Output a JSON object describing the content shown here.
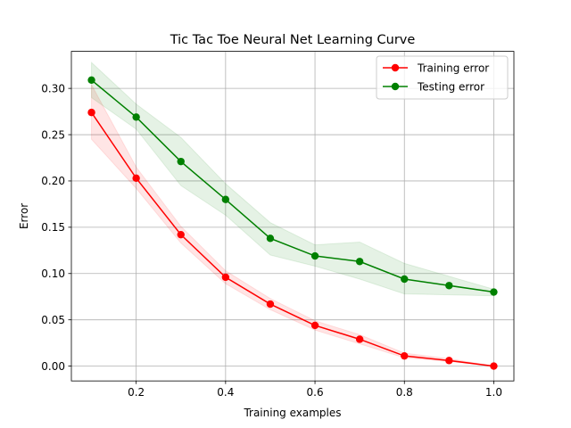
{
  "chart_data": {
    "type": "line",
    "title": "Tic Tac Toe Neural Net Learning Curve",
    "xlabel": "Training examples",
    "ylabel": "Error",
    "xlim": [
      0.055,
      1.045
    ],
    "ylim": [
      -0.016,
      0.34
    ],
    "xticks": [
      0.2,
      0.4,
      0.6,
      0.8,
      1.0
    ],
    "xtick_labels": [
      "0.2",
      "0.4",
      "0.6",
      "0.8",
      "1.0"
    ],
    "yticks": [
      0.0,
      0.05,
      0.1,
      0.15,
      0.2,
      0.25,
      0.3
    ],
    "ytick_labels": [
      "0.00",
      "0.05",
      "0.10",
      "0.15",
      "0.20",
      "0.25",
      "0.30"
    ],
    "grid": true,
    "legend_position": "top-right",
    "x": [
      0.1,
      0.2,
      0.3,
      0.4,
      0.5,
      0.6,
      0.7,
      0.8,
      0.9,
      1.0
    ],
    "series": [
      {
        "name": "Training error",
        "color": "#ff0000",
        "band_color": "#ff0000",
        "values": [
          0.274,
          0.203,
          0.142,
          0.096,
          0.067,
          0.044,
          0.029,
          0.011,
          0.006,
          0.0
        ],
        "lower": [
          0.245,
          0.192,
          0.133,
          0.089,
          0.061,
          0.039,
          0.024,
          0.009,
          0.005,
          0.0
        ],
        "upper": [
          0.304,
          0.215,
          0.151,
          0.103,
          0.073,
          0.049,
          0.034,
          0.014,
          0.008,
          0.0
        ]
      },
      {
        "name": "Testing error",
        "color": "#008000",
        "band_color": "#008000",
        "values": [
          0.309,
          0.269,
          0.221,
          0.18,
          0.138,
          0.119,
          0.113,
          0.094,
          0.087,
          0.08
        ],
        "lower": [
          0.29,
          0.256,
          0.195,
          0.163,
          0.12,
          0.108,
          0.094,
          0.078,
          0.077,
          0.076
        ],
        "upper": [
          0.328,
          0.283,
          0.247,
          0.197,
          0.155,
          0.131,
          0.134,
          0.111,
          0.097,
          0.083
        ]
      }
    ]
  }
}
